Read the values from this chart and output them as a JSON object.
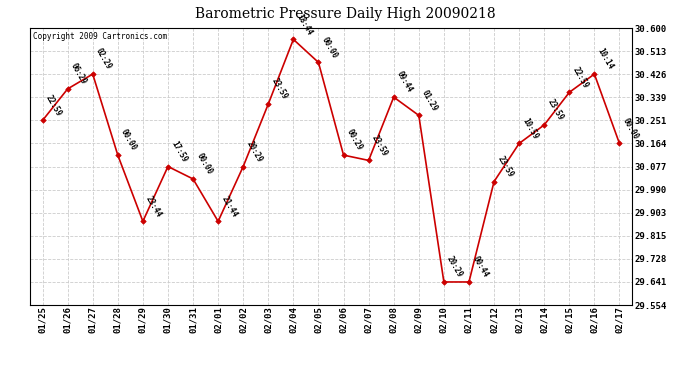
{
  "title": "Barometric Pressure Daily High 20090218",
  "copyright": "Copyright 2009 Cartronics.com",
  "background_color": "#ffffff",
  "line_color": "#cc0000",
  "marker_color": "#cc0000",
  "text_color": "#000000",
  "grid_color": "#cccccc",
  "ylim_min": 29.554,
  "ylim_max": 30.6,
  "yticks": [
    29.554,
    29.641,
    29.728,
    29.815,
    29.903,
    29.99,
    30.077,
    30.164,
    30.251,
    30.339,
    30.426,
    30.513,
    30.6
  ],
  "x_labels": [
    "01/25",
    "01/26",
    "01/27",
    "01/28",
    "01/29",
    "01/30",
    "01/31",
    "02/01",
    "02/02",
    "02/03",
    "02/04",
    "02/05",
    "02/06",
    "02/07",
    "02/08",
    "02/09",
    "02/10",
    "02/11",
    "02/12",
    "02/13",
    "02/14",
    "02/15",
    "02/16",
    "02/17"
  ],
  "data_points": [
    {
      "date": "01/25",
      "time": "22:59",
      "value": 30.251
    },
    {
      "date": "01/26",
      "time": "06:29",
      "value": 30.37
    },
    {
      "date": "01/27",
      "time": "02:29",
      "value": 30.426
    },
    {
      "date": "01/28",
      "time": "00:00",
      "value": 30.12
    },
    {
      "date": "01/29",
      "time": "23:44",
      "value": 29.87
    },
    {
      "date": "01/30",
      "time": "17:59",
      "value": 30.077
    },
    {
      "date": "01/31",
      "time": "00:00",
      "value": 30.03
    },
    {
      "date": "02/01",
      "time": "21:44",
      "value": 29.87
    },
    {
      "date": "02/02",
      "time": "20:29",
      "value": 30.077
    },
    {
      "date": "02/03",
      "time": "23:59",
      "value": 30.313
    },
    {
      "date": "02/04",
      "time": "18:44",
      "value": 30.557
    },
    {
      "date": "02/05",
      "time": "00:00",
      "value": 30.47
    },
    {
      "date": "02/06",
      "time": "00:29",
      "value": 30.12
    },
    {
      "date": "02/07",
      "time": "23:59",
      "value": 30.1
    },
    {
      "date": "02/08",
      "time": "09:44",
      "value": 30.339
    },
    {
      "date": "02/09",
      "time": "01:29",
      "value": 30.27
    },
    {
      "date": "02/10",
      "time": "20:29",
      "value": 29.641
    },
    {
      "date": "02/11",
      "time": "00:44",
      "value": 29.641
    },
    {
      "date": "02/12",
      "time": "23:59",
      "value": 30.02
    },
    {
      "date": "02/13",
      "time": "10:59",
      "value": 30.164
    },
    {
      "date": "02/14",
      "time": "23:59",
      "value": 30.234
    },
    {
      "date": "02/15",
      "time": "22:59",
      "value": 30.357
    },
    {
      "date": "02/16",
      "time": "10:14",
      "value": 30.426
    },
    {
      "date": "02/17",
      "time": "00:00",
      "value": 30.164
    }
  ]
}
